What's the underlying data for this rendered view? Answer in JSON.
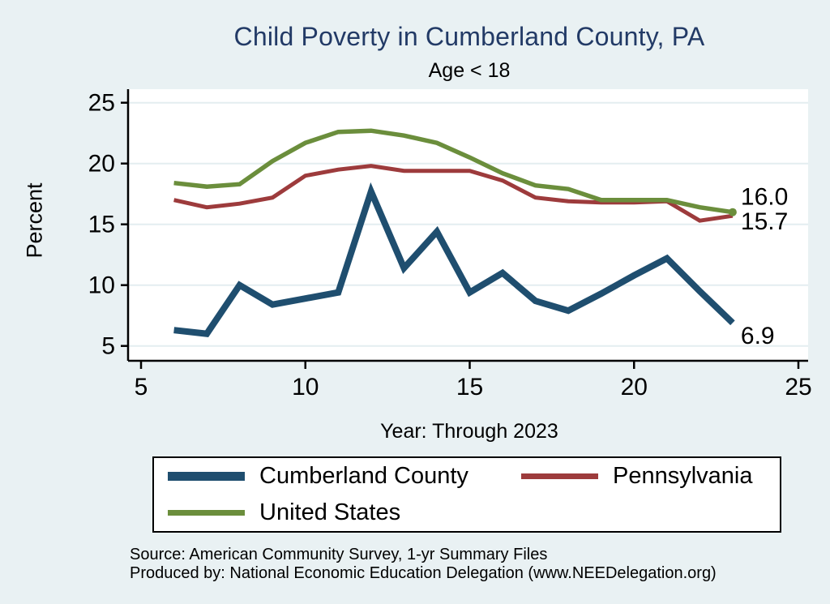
{
  "page": {
    "title": "Child Poverty in Cumberland County, PA",
    "subtitle": "Age < 18",
    "ylabel": "Percent",
    "xlabel": "Year: Through 2023"
  },
  "footer": {
    "source": "Source: American Community Survey, 1-yr Summary Files",
    "produced": "Produced by: National Economic Education Delegation (www.NEEDelegation.org)"
  },
  "colors": {
    "background": "#e9f1f3",
    "plot_background": "#ffffff",
    "gridline": "#e4eef0",
    "axis": "#000000",
    "title_color": "#223a66",
    "text": "#000000"
  },
  "chart_data": {
    "type": "line",
    "title": "Child Poverty in Cumberland County, PA",
    "subtitle": "Age < 18",
    "xlabel": "Year: Through 2023",
    "ylabel": "Percent",
    "xlim": [
      5,
      25
    ],
    "ylim": [
      5,
      25
    ],
    "x_ticks": [
      5,
      10,
      15,
      20,
      25
    ],
    "y_ticks": [
      5,
      10,
      15,
      20,
      25
    ],
    "grid": "horizontal",
    "legend_position": "bottom",
    "x": [
      6,
      7,
      8,
      9,
      10,
      11,
      12,
      13,
      14,
      15,
      16,
      17,
      18,
      19,
      20,
      21,
      22,
      23
    ],
    "series": [
      {
        "name": "Cumberland County",
        "color": "#1f4e6f",
        "line_width": 8,
        "values": [
          6.3,
          6.0,
          10.0,
          8.4,
          8.9,
          9.4,
          17.7,
          11.4,
          14.4,
          9.4,
          11.0,
          8.7,
          7.9,
          9.3,
          10.8,
          12.2,
          9.5,
          6.9
        ]
      },
      {
        "name": "Pennsylvania",
        "color": "#9d3b3c",
        "line_width": 5,
        "values": [
          17.0,
          16.4,
          16.7,
          17.2,
          19.0,
          19.5,
          19.8,
          19.4,
          19.4,
          19.4,
          18.6,
          17.2,
          16.9,
          16.8,
          16.8,
          16.9,
          15.3,
          15.7
        ]
      },
      {
        "name": "United States",
        "color": "#6b8e3c",
        "line_width": 5.5,
        "end_marker": true,
        "values": [
          18.4,
          18.1,
          18.3,
          20.2,
          21.7,
          22.6,
          22.7,
          22.3,
          21.7,
          20.5,
          19.2,
          18.2,
          17.9,
          17.0,
          17.0,
          17.0,
          16.4,
          16.0
        ]
      }
    ],
    "annotations": [
      {
        "text": "16.0",
        "series": "United States",
        "x": 23,
        "value": 16.0,
        "dy": -19
      },
      {
        "text": "15.7",
        "series": "Pennsylvania",
        "x": 23,
        "value": 15.7,
        "dy": 7
      },
      {
        "text": "6.9",
        "series": "Cumberland County",
        "x": 23,
        "value": 6.9,
        "dy": 16
      }
    ]
  }
}
